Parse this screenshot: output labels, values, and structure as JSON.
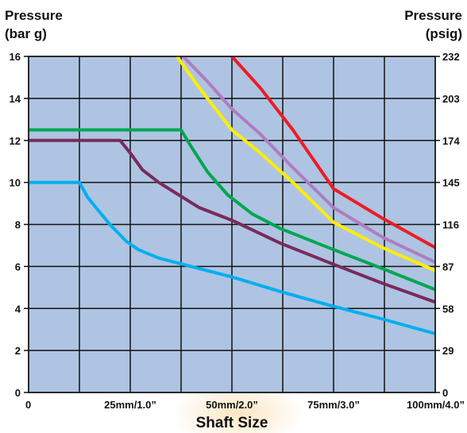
{
  "chart_data": {
    "type": "line",
    "ylabel_left": [
      "Pressure",
      "(bar g)"
    ],
    "ylabel_right": [
      "Pressure",
      "(psig)"
    ],
    "xlabel": "Shaft Size",
    "x_tick_labels": [
      "0",
      "25mm/1.0”",
      "50mm/2.0”",
      "75mm/3.0”",
      "100mm/4.0”"
    ],
    "x_tick_values": [
      0,
      25,
      50,
      75,
      100
    ],
    "y_left_ticks": [
      0,
      2,
      4,
      6,
      8,
      10,
      12,
      14,
      16
    ],
    "y_right_tick_labels": [
      "0",
      "29",
      "58",
      "87",
      "116",
      "145",
      "174",
      "203",
      "232"
    ],
    "y_right_tick_values": [
      0,
      2,
      4,
      6,
      8,
      10,
      12,
      14,
      16
    ],
    "xlim": [
      0,
      100
    ],
    "ylim": [
      0,
      16
    ],
    "x_grid_step": 12.5,
    "grid": true,
    "plot_background": "#aec4e2",
    "series": [
      {
        "color": "#00aeef",
        "points": [
          [
            0,
            10
          ],
          [
            12.5,
            10
          ],
          [
            14.5,
            9.3
          ],
          [
            17,
            8.7
          ],
          [
            20,
            8.0
          ],
          [
            24,
            7.2
          ],
          [
            27,
            6.8
          ],
          [
            32,
            6.4
          ],
          [
            40,
            6.0
          ],
          [
            50,
            5.5
          ],
          [
            62,
            4.8
          ],
          [
            75,
            4.1
          ],
          [
            87,
            3.5
          ],
          [
            100,
            2.8
          ]
        ]
      },
      {
        "color": "#7a2a5c",
        "points": [
          [
            0,
            12
          ],
          [
            22.5,
            12
          ],
          [
            25,
            11.4
          ],
          [
            28,
            10.6
          ],
          [
            32,
            10.0
          ],
          [
            37,
            9.4
          ],
          [
            42,
            8.8
          ],
          [
            50,
            8.2
          ],
          [
            62,
            7.1
          ],
          [
            75,
            6.1
          ],
          [
            87,
            5.2
          ],
          [
            100,
            4.3
          ]
        ]
      },
      {
        "color": "#00a651",
        "points": [
          [
            0,
            12.5
          ],
          [
            37.5,
            12.5
          ],
          [
            40,
            11.7
          ],
          [
            44,
            10.5
          ],
          [
            49,
            9.4
          ],
          [
            55,
            8.5
          ],
          [
            62,
            7.8
          ],
          [
            75,
            6.8
          ],
          [
            87,
            5.9
          ],
          [
            100,
            4.9
          ]
        ]
      },
      {
        "color": "#ffee00",
        "points": [
          [
            36.5,
            16
          ],
          [
            42,
            14.5
          ],
          [
            50,
            12.5
          ],
          [
            57,
            11.4
          ],
          [
            65,
            10.0
          ],
          [
            75,
            8.1
          ],
          [
            87,
            6.9
          ],
          [
            100,
            5.8
          ]
        ]
      },
      {
        "color": "#b07cc0",
        "points": [
          [
            38,
            16
          ],
          [
            44,
            14.8
          ],
          [
            50,
            13.5
          ],
          [
            57,
            12.3
          ],
          [
            65,
            10.7
          ],
          [
            75,
            8.8
          ],
          [
            87,
            7.4
          ],
          [
            100,
            6.2
          ]
        ]
      },
      {
        "color": "#ed1c24",
        "points": [
          [
            50,
            16
          ],
          [
            57,
            14.5
          ],
          [
            65,
            12.5
          ],
          [
            75,
            9.7
          ],
          [
            87,
            8.3
          ],
          [
            100,
            6.9
          ]
        ]
      }
    ]
  }
}
